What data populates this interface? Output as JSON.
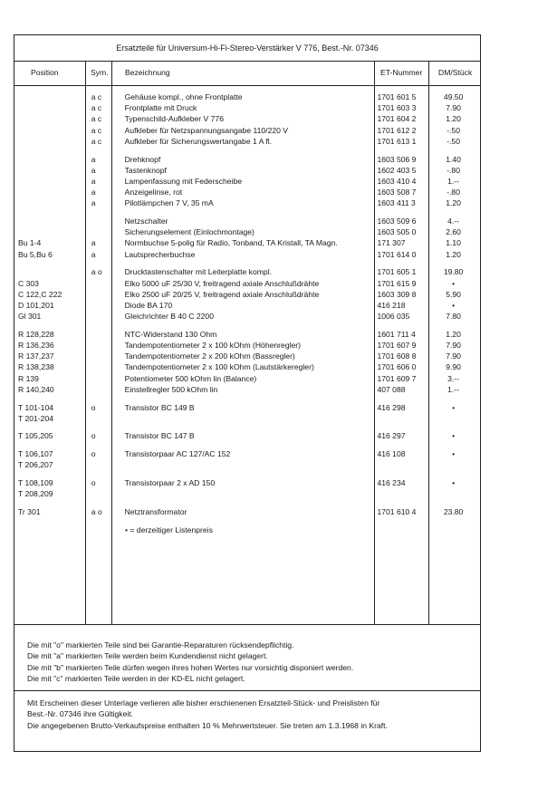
{
  "title": "Ersatzteile für Universum-Hi-Fi-Stereo-Verstärker V 776, Best.-Nr. 07346",
  "columns": {
    "position": "Position",
    "sym": "Sym.",
    "desc": "Bezeichnung",
    "et": "ET-Nummer",
    "price": "DM/Stück"
  },
  "groups": [
    [
      {
        "pos": "",
        "sym": "a c",
        "desc": "Gehäuse kompl., ohne Frontplatte",
        "et": "1701 601 5",
        "price": "49.50"
      },
      {
        "pos": "",
        "sym": "a c",
        "desc": "Frontplatte mit Druck",
        "et": "1701 603 3",
        "price": "7.90"
      },
      {
        "pos": "",
        "sym": "a c",
        "desc": "Typenschild-Aufkleber V 776",
        "et": "1701 604 2",
        "price": "1.20"
      },
      {
        "pos": "",
        "sym": "a c",
        "desc": "Aufkleber für Netzspannungsangabe 110/220 V",
        "et": "1701 612 2",
        "price": "-.50"
      },
      {
        "pos": "",
        "sym": "a c",
        "desc": "Aufkleber für Sicherungswertangabe 1 A fl.",
        "et": "1701 613 1",
        "price": "-.50"
      }
    ],
    [
      {
        "pos": "",
        "sym": "a",
        "desc": "Drehknopf",
        "et": "1603 506 9",
        "price": "1.40"
      },
      {
        "pos": "",
        "sym": "a",
        "desc": "Tastenknopf",
        "et": "1602 403 5",
        "price": "-.80"
      },
      {
        "pos": "",
        "sym": "a",
        "desc": "Lampenfassung mit Federscheibe",
        "et": "1603 410 4",
        "price": "1.--"
      },
      {
        "pos": "",
        "sym": "a",
        "desc": "Anzeigelinse, rot",
        "et": "1603 508 7",
        "price": "-.80"
      },
      {
        "pos": "",
        "sym": "a",
        "desc": "Pilotlämpchen 7 V, 35 mA",
        "et": "1603 411 3",
        "price": "1.20"
      }
    ],
    [
      {
        "pos": "",
        "sym": "",
        "desc": "Netzschalter",
        "et": "1603 509 6",
        "price": "4.--"
      },
      {
        "pos": "",
        "sym": "",
        "desc": "Sicherungselement (Einlochmontage)",
        "et": "1603 505 0",
        "price": "2.60"
      },
      {
        "pos": "Bu 1-4",
        "sym": "a",
        "desc": "Normbuchse 5-polig für Radio, Tonband, TA Kristall, TA Magn.",
        "et": "171 307",
        "price": "1.10"
      },
      {
        "pos": "Bu 5,Bu 6",
        "sym": "a",
        "desc": "Lautsprecherbuchse",
        "et": "1701 614 0",
        "price": "1.20"
      }
    ],
    [
      {
        "pos": "",
        "sym": "a o",
        "desc": "Drucktastenschalter mit Leiterplatte kompl.",
        "et": "1701 605 1",
        "price": "19.80"
      },
      {
        "pos": "C 303",
        "sym": "",
        "desc": "Elko 5000 uF 25/30 V, freitragend axiale Anschlußdrähte",
        "et": "1701 615 9",
        "price": "•"
      },
      {
        "pos": "C 122,C 222",
        "sym": "",
        "desc": "Elko 2500 uF 20/25 V, freitragend axiale Anschlußdrähte",
        "et": "1603 309 8",
        "price": "5.90"
      },
      {
        "pos": "D 101,201",
        "sym": "",
        "desc": "Diode BA 170",
        "et": "416 218",
        "price": "•"
      },
      {
        "pos": "Gl 301",
        "sym": "",
        "desc": "Gleichrichter B 40 C 2200",
        "et": "1006 035",
        "price": "7.80"
      }
    ],
    [
      {
        "pos": "R 128,228",
        "sym": "",
        "desc": "NTC-Widerstand 130 Ohm",
        "et": "1601 711 4",
        "price": "1.20"
      },
      {
        "pos": "R 136,236",
        "sym": "",
        "desc": "Tandempotentiometer 2 x 100 kOhm (Höhenregler)",
        "et": "1701 607 9",
        "price": "7.90"
      },
      {
        "pos": "R 137,237",
        "sym": "",
        "desc": "Tandempotentiometer 2 x 200 kOhm (Bassregler)",
        "et": "1701 608 8",
        "price": "7.90"
      },
      {
        "pos": "R 138,238",
        "sym": "",
        "desc": "Tandempotentiometer 2 x 100 kOhm (Lautstärkeregler)",
        "et": "1701 606 0",
        "price": "9.90"
      },
      {
        "pos": "R 139",
        "sym": "",
        "desc": "Potentiometer 500 kOhm lin        (Balance)",
        "et": "1701 609 7",
        "price": "3.--"
      },
      {
        "pos": "R 140,240",
        "sym": "",
        "desc": "Einstellregler 500 kOhm lin",
        "et": "407 088",
        "price": "1.--"
      }
    ],
    [
      {
        "pos": "T 101-104\nT 201-204",
        "sym": "o",
        "desc": "Transistor BC 149 B",
        "et": "416 298",
        "price": "•"
      }
    ],
    [
      {
        "pos": "T 105,205",
        "sym": "o",
        "desc": "Transistor BC 147 B",
        "et": "416 297",
        "price": "•"
      }
    ],
    [
      {
        "pos": "T 106,107\nT 206,207",
        "sym": "o",
        "desc": "Transistorpaar AC 127/AC 152",
        "et": "416 108",
        "price": "•"
      }
    ],
    [
      {
        "pos": "T 108,109\nT 208,209",
        "sym": "o",
        "desc": "Transistorpaar 2 x AD 150",
        "et": "416 234",
        "price": "•"
      }
    ],
    [
      {
        "pos": "Tr 301",
        "sym": "a o",
        "desc": "Netztransformator",
        "et": "1701 610 4",
        "price": "23.80"
      }
    ]
  ],
  "footnote": "• = derzeitiger Listenpreis",
  "legend": [
    "Die mit \"o\" markierten Teile sind bei Garantie-Reparaturen rücksendepflichtig.",
    "Die mit \"a\" markierten Teile werden beim Kundendienst nicht gelagert.",
    "Die mit \"b\" markierten Teile dürfen wegen ihres hohen Wertes nur vorsichtig disponiert werden.",
    "Die mit \"c\" markierten Teile werden in der KD-EL nicht gelagert."
  ],
  "footer": [
    "Mit Erscheinen dieser Unterlage verlieren alle bisher erschienenen Ersatzteil-Stück- und Preislisten für",
    "Best.-Nr. 07346 ihre Gültigkeit.",
    "Die angegebenen Brutto-Verkaufspreise enthalten 10 % Mehrwertsteuer. Sie treten am 1.3.1968 in Kraft."
  ]
}
